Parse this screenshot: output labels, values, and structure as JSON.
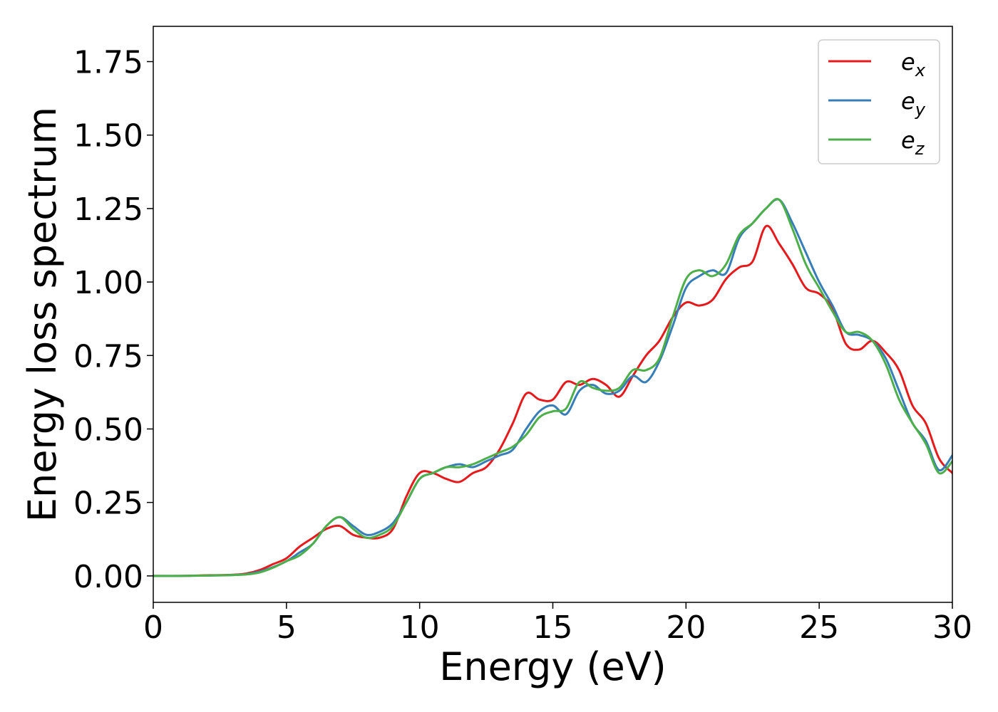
{
  "chart_data": {
    "type": "line",
    "title": "",
    "xlabel": "Energy (eV)",
    "ylabel": "Energy loss spectrum",
    "xlim": [
      0,
      30
    ],
    "ylim": [
      -0.09,
      1.87
    ],
    "x_ticks": [
      0,
      5,
      10,
      15,
      20,
      25,
      30
    ],
    "x_tick_labels": [
      "0",
      "5",
      "10",
      "15",
      "20",
      "25",
      "30"
    ],
    "y_ticks": [
      0.0,
      0.25,
      0.5,
      0.75,
      1.0,
      1.25,
      1.5,
      1.75
    ],
    "y_tick_labels": [
      "0.00",
      "0.25",
      "0.50",
      "0.75",
      "1.00",
      "1.25",
      "1.50",
      "1.75"
    ],
    "grid": false,
    "legend_position": "top-right",
    "series": [
      {
        "name": "e_x",
        "legend_base": "e",
        "legend_sub": "x",
        "color": "#e41a1c",
        "x": [
          0,
          1,
          2,
          3,
          3.5,
          4,
          4.5,
          5,
          5.5,
          6,
          6.5,
          7,
          7.5,
          8,
          8.5,
          9,
          9.5,
          10,
          10.5,
          11,
          11.5,
          12,
          12.5,
          13,
          13.5,
          14,
          14.5,
          15,
          15.5,
          16,
          16.5,
          17,
          17.5,
          18,
          18.5,
          19,
          19.5,
          20,
          20.5,
          21,
          21.5,
          22,
          22.5,
          23,
          23.5,
          24,
          24.5,
          25,
          25.5,
          26,
          26.5,
          27,
          27.5,
          28,
          28.5,
          29,
          29.5,
          30
        ],
        "y": [
          0.0,
          0.0,
          0.002,
          0.004,
          0.008,
          0.02,
          0.04,
          0.06,
          0.1,
          0.13,
          0.16,
          0.17,
          0.14,
          0.13,
          0.13,
          0.16,
          0.27,
          0.35,
          0.35,
          0.33,
          0.32,
          0.35,
          0.37,
          0.43,
          0.52,
          0.62,
          0.6,
          0.6,
          0.66,
          0.65,
          0.67,
          0.65,
          0.61,
          0.68,
          0.75,
          0.8,
          0.88,
          0.93,
          0.92,
          0.94,
          1.01,
          1.05,
          1.07,
          1.19,
          1.13,
          1.06,
          0.98,
          0.96,
          0.91,
          0.79,
          0.77,
          0.8,
          0.76,
          0.7,
          0.58,
          0.52,
          0.4,
          0.35
        ]
      },
      {
        "name": "e_y",
        "legend_base": "e",
        "legend_sub": "y",
        "color": "#377eb8",
        "x": [
          0,
          1,
          2,
          3,
          3.5,
          4,
          4.5,
          5,
          5.5,
          6,
          6.5,
          7,
          7.5,
          8,
          8.5,
          9,
          9.5,
          10,
          10.5,
          11,
          11.5,
          12,
          12.5,
          13,
          13.5,
          14,
          14.5,
          15,
          15.5,
          16,
          16.5,
          17,
          17.5,
          18,
          18.5,
          19,
          19.5,
          20,
          20.5,
          21,
          21.5,
          22,
          22.5,
          23,
          23.5,
          24,
          24.5,
          25,
          25.5,
          26,
          26.5,
          27,
          27.5,
          28,
          28.5,
          29,
          29.5,
          30
        ],
        "y": [
          0.0,
          0.0,
          0.001,
          0.003,
          0.006,
          0.015,
          0.03,
          0.05,
          0.08,
          0.11,
          0.17,
          0.2,
          0.17,
          0.14,
          0.15,
          0.18,
          0.25,
          0.33,
          0.35,
          0.37,
          0.38,
          0.37,
          0.39,
          0.41,
          0.43,
          0.5,
          0.56,
          0.58,
          0.55,
          0.63,
          0.65,
          0.62,
          0.63,
          0.68,
          0.66,
          0.73,
          0.85,
          0.98,
          1.02,
          1.04,
          1.03,
          1.15,
          1.2,
          1.25,
          1.28,
          1.2,
          1.1,
          1.0,
          0.92,
          0.83,
          0.82,
          0.8,
          0.74,
          0.63,
          0.52,
          0.46,
          0.36,
          0.41
        ]
      },
      {
        "name": "e_z",
        "legend_base": "e",
        "legend_sub": "z",
        "color": "#4daf4a",
        "x": [
          0,
          1,
          2,
          3,
          3.5,
          4,
          4.5,
          5,
          5.5,
          6,
          6.5,
          7,
          7.5,
          8,
          8.5,
          9,
          9.5,
          10,
          10.5,
          11,
          11.5,
          12,
          12.5,
          13,
          13.5,
          14,
          14.5,
          15,
          15.5,
          16,
          16.5,
          17,
          17.5,
          18,
          18.5,
          19,
          19.5,
          20,
          20.5,
          21,
          21.5,
          22,
          22.5,
          23,
          23.5,
          24,
          24.5,
          25,
          25.5,
          26,
          26.5,
          27,
          27.5,
          28,
          28.5,
          29,
          29.5,
          30
        ],
        "y": [
          0.0,
          0.0,
          0.001,
          0.003,
          0.005,
          0.012,
          0.028,
          0.05,
          0.07,
          0.11,
          0.17,
          0.2,
          0.16,
          0.13,
          0.14,
          0.17,
          0.25,
          0.33,
          0.35,
          0.37,
          0.37,
          0.38,
          0.4,
          0.42,
          0.44,
          0.48,
          0.54,
          0.56,
          0.57,
          0.66,
          0.64,
          0.63,
          0.64,
          0.7,
          0.7,
          0.74,
          0.88,
          1.01,
          1.04,
          1.02,
          1.06,
          1.16,
          1.2,
          1.25,
          1.28,
          1.18,
          1.06,
          0.98,
          0.9,
          0.83,
          0.83,
          0.8,
          0.72,
          0.6,
          0.52,
          0.45,
          0.35,
          0.39
        ]
      }
    ]
  }
}
